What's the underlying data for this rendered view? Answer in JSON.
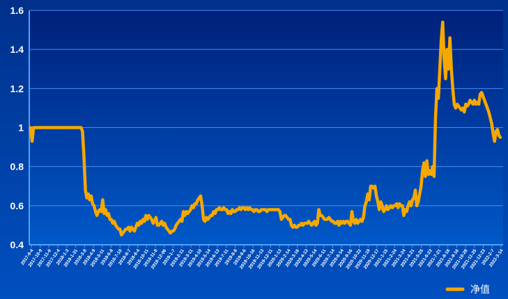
{
  "chart_data": {
    "type": "line",
    "title": "",
    "xlabel": "",
    "ylabel": "",
    "ylim": [
      0.4,
      1.6
    ],
    "yticks": [
      0.4,
      0.6,
      0.8,
      1,
      1.2,
      1.4,
      1.6
    ],
    "ytick_labels": [
      "0.4",
      "0.6",
      "0.8",
      "1",
      "1.2",
      "1.4",
      "1.6"
    ],
    "grid": true,
    "legend_position": "bottom-right",
    "colors": {
      "line": "#f5a800",
      "grid": "#4a8cf0",
      "axis": "#4fa3ff",
      "text": "#ffffff"
    },
    "x_tick_labels": [
      "2017-9-4",
      "2017-10-9",
      "2017-11-6",
      "2017-12-4",
      "2018-1-3",
      "2018-1-31",
      "2018-3-8",
      "2018-4-9",
      "2018-5-11",
      "2018-6-8",
      "2018-7-10",
      "2018-8-7",
      "2018-9-4",
      "2018-10-11",
      "2018-11-8",
      "2018-12-06",
      "2019-1-7",
      "2019-2-11",
      "2019-3-11",
      "2019-4-10",
      "2019-5-14",
      "2019-6-13",
      "2019-7-11",
      "2019-8-8",
      "2019-9-6",
      "2019-10-16",
      "2019-11-13",
      "2019-12-11",
      "2020-1-13",
      "2020-2-14",
      "2020-3-16",
      "2020-4-13",
      "2020-5-14",
      "2020-6-11",
      "2020-7-14",
      "2020-8-14",
      "2020-9-16",
      "2020-10-22",
      "2020-11-19",
      "2020-12-17",
      "2021-1-15",
      "2021-2-24",
      "2021-3-24",
      "2021-4-21",
      "2021-5-25",
      "2021-6-23",
      "2021-7-21",
      "2021-8-18",
      "2021-9-16",
      "2021-10-28",
      "2021-11-25",
      "2021-12-23",
      "2022-2-7",
      "2022-3-14"
    ],
    "series": [
      {
        "name": "净值",
        "values": [
          1.0,
          0.93,
          1.0,
          1.0,
          1.0,
          1.0,
          1.0,
          1.0,
          1.0,
          1.0,
          1.0,
          1.0,
          1.0,
          1.0,
          1.0,
          1.0,
          1.0,
          1.0,
          1.0,
          1.0,
          1.0,
          1.0,
          1.0,
          1.0,
          1.0,
          1.0,
          1.0,
          1.0,
          1.0,
          1.0,
          1.0,
          1.0,
          1.0,
          1.0,
          1.0,
          1.0,
          0.98,
          0.85,
          0.68,
          0.64,
          0.66,
          0.63,
          0.65,
          0.61,
          0.6,
          0.57,
          0.55,
          0.57,
          0.58,
          0.57,
          0.63,
          0.56,
          0.58,
          0.55,
          0.56,
          0.53,
          0.53,
          0.51,
          0.52,
          0.5,
          0.49,
          0.48,
          0.48,
          0.45,
          0.46,
          0.47,
          0.48,
          0.48,
          0.49,
          0.47,
          0.49,
          0.48,
          0.47,
          0.49,
          0.51,
          0.5,
          0.52,
          0.51,
          0.53,
          0.52,
          0.55,
          0.53,
          0.55,
          0.54,
          0.53,
          0.51,
          0.52,
          0.54,
          0.5,
          0.5,
          0.51,
          0.52,
          0.5,
          0.51,
          0.49,
          0.48,
          0.47,
          0.46,
          0.47,
          0.47,
          0.48,
          0.5,
          0.51,
          0.52,
          0.53,
          0.52,
          0.57,
          0.55,
          0.57,
          0.56,
          0.57,
          0.58,
          0.6,
          0.59,
          0.61,
          0.61,
          0.63,
          0.64,
          0.65,
          0.6,
          0.53,
          0.52,
          0.54,
          0.53,
          0.54,
          0.55,
          0.55,
          0.57,
          0.56,
          0.58,
          0.58,
          0.59,
          0.58,
          0.58,
          0.59,
          0.58,
          0.58,
          0.56,
          0.57,
          0.56,
          0.58,
          0.57,
          0.57,
          0.58,
          0.58,
          0.59,
          0.58,
          0.59,
          0.59,
          0.58,
          0.59,
          0.58,
          0.59,
          0.58,
          0.58,
          0.57,
          0.58,
          0.58,
          0.57,
          0.57,
          0.58,
          0.58,
          0.58,
          0.58,
          0.57,
          0.58,
          0.58,
          0.58,
          0.58,
          0.58,
          0.58,
          0.58,
          0.58,
          0.57,
          0.53,
          0.54,
          0.55,
          0.55,
          0.54,
          0.53,
          0.53,
          0.5,
          0.49,
          0.5,
          0.49,
          0.49,
          0.5,
          0.5,
          0.51,
          0.5,
          0.51,
          0.51,
          0.51,
          0.52,
          0.51,
          0.5,
          0.51,
          0.52,
          0.5,
          0.51,
          0.58,
          0.55,
          0.55,
          0.54,
          0.53,
          0.53,
          0.53,
          0.54,
          0.53,
          0.52,
          0.52,
          0.51,
          0.51,
          0.52,
          0.5,
          0.52,
          0.51,
          0.52,
          0.51,
          0.52,
          0.52,
          0.51,
          0.5,
          0.57,
          0.52,
          0.51,
          0.53,
          0.51,
          0.52,
          0.53,
          0.52,
          0.54,
          0.6,
          0.62,
          0.66,
          0.63,
          0.7,
          0.7,
          0.69,
          0.7,
          0.65,
          0.62,
          0.58,
          0.62,
          0.6,
          0.57,
          0.58,
          0.6,
          0.58,
          0.59,
          0.6,
          0.59,
          0.6,
          0.6,
          0.61,
          0.59,
          0.61,
          0.6,
          0.6,
          0.55,
          0.58,
          0.57,
          0.6,
          0.62,
          0.6,
          0.63,
          0.64,
          0.68,
          0.6,
          0.62,
          0.66,
          0.7,
          0.78,
          0.82,
          0.75,
          0.83,
          0.76,
          0.78,
          0.76,
          0.8,
          0.75,
          1.05,
          1.2,
          1.15,
          1.3,
          1.45,
          1.54,
          1.35,
          1.25,
          1.4,
          1.3,
          1.46,
          1.3,
          1.2,
          1.12,
          1.1,
          1.12,
          1.11,
          1.1,
          1.09,
          1.1,
          1.08,
          1.12,
          1.11,
          1.12,
          1.14,
          1.13,
          1.12,
          1.14,
          1.12,
          1.13,
          1.12,
          1.17,
          1.18,
          1.16,
          1.14,
          1.12,
          1.1,
          1.08,
          1.05,
          1.02,
          0.97,
          0.93,
          0.98,
          0.99,
          0.96,
          0.95
        ]
      }
    ]
  }
}
